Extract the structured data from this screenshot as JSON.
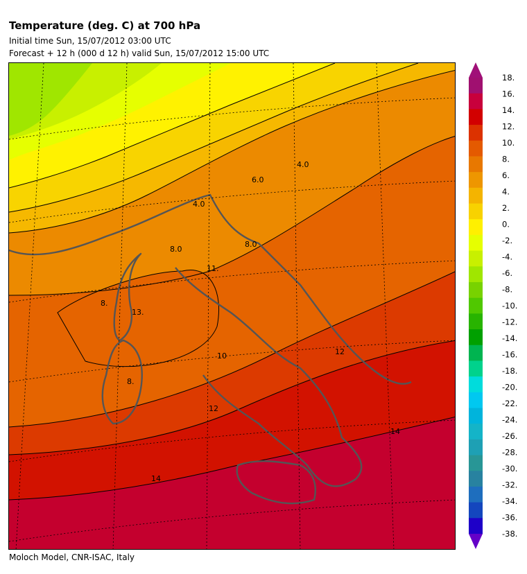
{
  "header": {
    "title": "Temperature (deg. C) at 700 hPa",
    "initial_time": "Initial time  Sun, 15/07/2012  03:00 UTC",
    "forecast": "Forecast  +  12 h  (000 d 12 h)  valid Sun, 15/07/2012 15:00 UTC"
  },
  "footer": "Moloch Model, CNR-ISAC, Italy",
  "legend": {
    "ticks": [
      "18.",
      "16.",
      "14.",
      "12.",
      "10.",
      "8.",
      "6.",
      "4.",
      "2.",
      "0.",
      "-2.",
      "-4.",
      "-6.",
      "-8.",
      "-10.",
      "-12.",
      "-14.",
      "-16.",
      "-18.",
      "-20.",
      "-22.",
      "-24.",
      "-26.",
      "-28.",
      "-30.",
      "-32.",
      "-34.",
      "-36.",
      "-38."
    ],
    "colors": [
      "#a01070",
      "#c8003c",
      "#d20000",
      "#dc3200",
      "#e45a00",
      "#e87800",
      "#ee9600",
      "#f4b400",
      "#f8d200",
      "#fff000",
      "#e6ff00",
      "#c8f000",
      "#a0e600",
      "#78d200",
      "#50c800",
      "#28b400",
      "#00a000",
      "#00b450",
      "#00d28c",
      "#00dcdc",
      "#00c8f0",
      "#00b4dc",
      "#14b4c8",
      "#1ea0b4",
      "#289696",
      "#2882a0",
      "#1e6ebe",
      "#1446be",
      "#1e00c8"
    ],
    "top_arrow_color": "#a01078",
    "bottom_arrow_color": "#6400c8"
  },
  "map": {
    "contour_labels": [
      "6.0",
      "4.0",
      "4.0",
      "8.0",
      "8.0",
      "11.",
      "8.",
      "13.",
      "8.",
      "10",
      "12",
      "12",
      "14",
      "14"
    ]
  }
}
